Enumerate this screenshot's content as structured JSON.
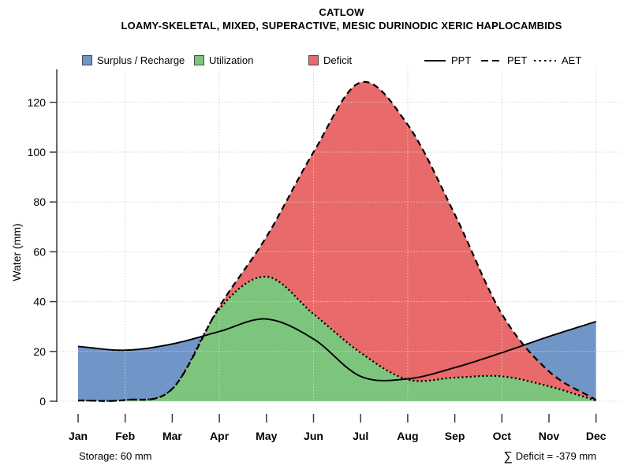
{
  "header": {
    "title": "CATLOW",
    "subtitle": "LOAMY-SKELETAL, MIXED, SUPERACTIVE, MESIC DURINODIC XERIC HAPLOCAMBIDS"
  },
  "legend": {
    "areas": [
      {
        "label": "Surplus / Recharge",
        "color": "#7095c7"
      },
      {
        "label": "Utilization",
        "color": "#7dc47d"
      },
      {
        "label": "Deficit",
        "color": "#e86a6a"
      }
    ],
    "lines": [
      {
        "label": "PPT",
        "style": "solid"
      },
      {
        "label": "PET",
        "style": "dashed"
      },
      {
        "label": "AET",
        "style": "dotted"
      }
    ]
  },
  "footer": {
    "storage": "Storage: 60 mm",
    "deficit_sigma": "∑",
    "deficit": "Deficit = -379 mm"
  },
  "chart_data": {
    "type": "area",
    "title": "CATLOW",
    "x": [
      "Jan",
      "Feb",
      "Mar",
      "Apr",
      "May",
      "Jun",
      "Jul",
      "Aug",
      "Sep",
      "Oct",
      "Nov",
      "Dec"
    ],
    "series": [
      {
        "name": "PPT",
        "style": "solid",
        "values": [
          22,
          20.5,
          23,
          28,
          33,
          25,
          10,
          9,
          13.5,
          19.5,
          26,
          32
        ]
      },
      {
        "name": "PET",
        "style": "dashed",
        "values": [
          0.3,
          0.5,
          5,
          38,
          66,
          100,
          128,
          111,
          75,
          35,
          12,
          0.5
        ]
      },
      {
        "name": "AET",
        "style": "dotted",
        "values": [
          0.3,
          0.5,
          5,
          37,
          50,
          35,
          19.5,
          8.7,
          9.5,
          10,
          6,
          0.3
        ]
      }
    ],
    "areas": [
      {
        "name": "Surplus / Recharge",
        "color": "#7095c7",
        "rule": "between PPT and PET where PPT > PET"
      },
      {
        "name": "Utilization",
        "color": "#7dc47d",
        "rule": "between 0 and AET"
      },
      {
        "name": "Deficit",
        "color": "#e86a6a",
        "rule": "between PET and AET where PET > AET"
      }
    ],
    "ylabel": "Water (mm)",
    "ylim": [
      0,
      130
    ],
    "yticks": [
      0,
      20,
      40,
      60,
      80,
      100,
      120
    ],
    "grid": "dotted, horizontal at yticks and vertical at Feb/Apr/Jun/Aug/Oct/Dec",
    "interpolation": "smooth spline through monthly values",
    "annotations": {
      "storage_mm": 60,
      "sum_deficit_mm": -379
    }
  }
}
